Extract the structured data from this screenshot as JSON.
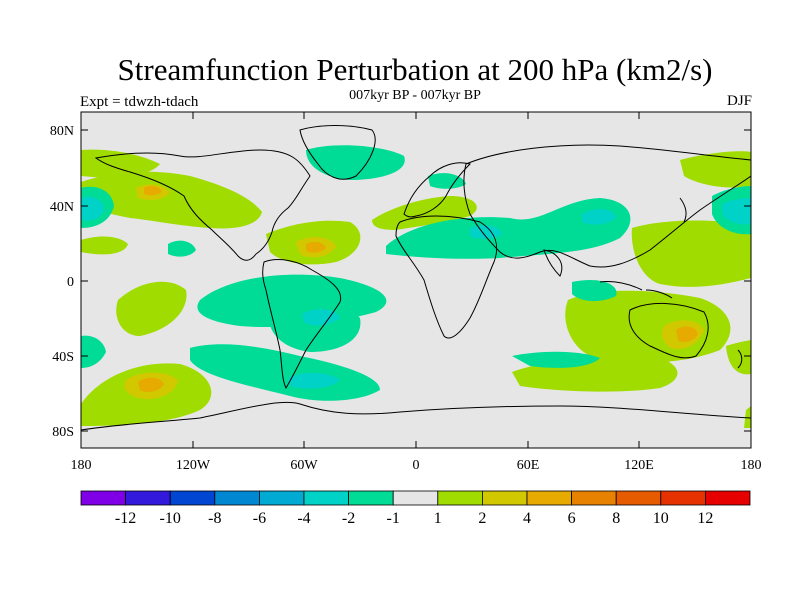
{
  "header": {
    "title": "Streamfunction Perturbation at 200 hPa (km2/s)",
    "subtitle": "007kyr BP - 007kyr BP",
    "left_label": "Expt = tdwzh-tdach",
    "right_label": "DJF"
  },
  "map": {
    "lat_ticks": [
      "80N",
      "40N",
      "0",
      "40S",
      "80S"
    ],
    "lon_ticks": [
      "180",
      "120W",
      "60W",
      "0",
      "60E",
      "120E",
      "180"
    ],
    "background_color": "#e6e6e6",
    "fill_colors": {
      "neg1": "#00dc96",
      "neg2": "#00d2c8",
      "pos1": "#a0dc00",
      "pos2": "#d2c800",
      "pos3": "#e6aa00"
    }
  },
  "colorbar": {
    "labels": [
      "-12",
      "-10",
      "-8",
      "-6",
      "-4",
      "-2",
      "-1",
      "1",
      "2",
      "4",
      "6",
      "8",
      "10",
      "12"
    ],
    "colors": [
      "#7f00e6",
      "#3219dc",
      "#0046d2",
      "#0087d2",
      "#00aad2",
      "#00d2c8",
      "#00dc96",
      "#e6e6e6",
      "#a0dc00",
      "#d2c800",
      "#e6aa00",
      "#e68200",
      "#e65a00",
      "#e63200",
      "#e60000"
    ]
  }
}
